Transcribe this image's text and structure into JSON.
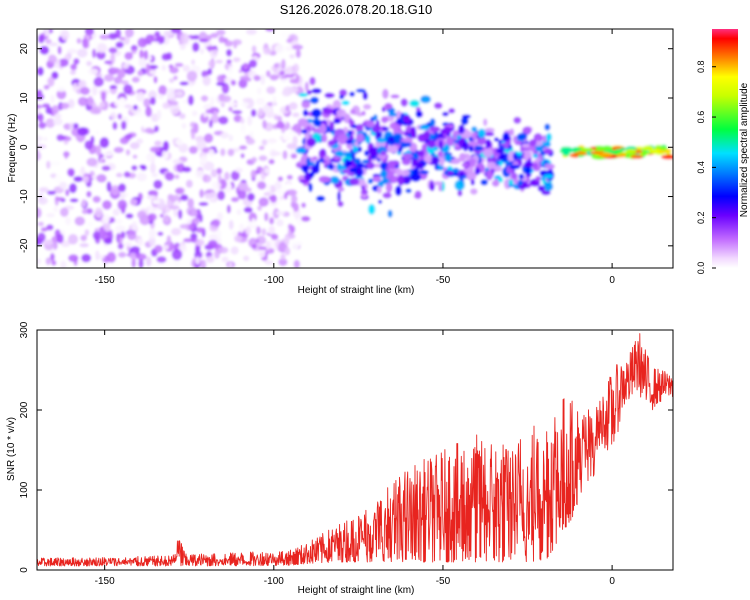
{
  "title": "S126.2026.078.20.18.G10",
  "chart_data": [
    {
      "type": "heatmap",
      "xlabel": "Height of straight line (km)",
      "ylabel": "Frequency (Hz)",
      "xlim": [
        -170,
        18
      ],
      "ylim": [
        -24.5,
        24
      ],
      "xticks": [
        -150,
        -100,
        -50,
        0
      ],
      "yticks": [
        -20,
        -10,
        0,
        10,
        20
      ],
      "colorbar": {
        "label": "Normalized spectral amplitude",
        "range": [
          0,
          0.95
        ],
        "ticks": [
          0.0,
          0.2,
          0.4,
          0.6,
          0.8
        ],
        "tick_labels": [
          "0.0",
          "0.2",
          "0.4",
          "0.6",
          "0.8"
        ],
        "colormap": "rainbow (magenta-blue-cyan-green-yellow-red)"
      },
      "regions": [
        {
          "x_range": [
            -170,
            -92
          ],
          "freq_range": [
            -24,
            24
          ],
          "amplitude_range": [
            0.0,
            0.18
          ],
          "description": "broadband noise"
        },
        {
          "x_range": [
            -92,
            -18
          ],
          "freq_center_start": 1,
          "freq_center_end": -3,
          "freq_halfwidth": 6,
          "amplitude_range": [
            0.08,
            0.5
          ]
        },
        {
          "x_range": [
            -14,
            18
          ],
          "freq_center": -1,
          "freq_halfwidth": 1,
          "amplitude_range": [
            0.5,
            0.95
          ],
          "description": "narrow strong signal"
        }
      ]
    },
    {
      "type": "line",
      "color": "#e8241f",
      "xlabel": "Height of straight line (km)",
      "ylabel": "SNR (10 * v/v)",
      "xlim": [
        -170,
        18
      ],
      "ylim": [
        0,
        300
      ],
      "xticks": [
        -150,
        -100,
        -50,
        0
      ],
      "yticks": [
        0,
        100,
        200,
        300
      ],
      "envelope": {
        "x": [
          -170,
          -150,
          -130,
          -128,
          -126,
          -110,
          -95,
          -90,
          -80,
          -70,
          -60,
          -50,
          -40,
          -30,
          -20,
          -15,
          -10,
          -5,
          -2,
          0,
          3,
          5,
          8,
          10,
          12,
          15,
          18
        ],
        "low": [
          5,
          5,
          5,
          5,
          5,
          5,
          6,
          8,
          10,
          10,
          10,
          10,
          10,
          10,
          10,
          40,
          80,
          120,
          110,
          80,
          160,
          170,
          180,
          150,
          170,
          190,
          200
        ],
        "high": [
          15,
          16,
          18,
          45,
          20,
          22,
          25,
          35,
          60,
          90,
          130,
          150,
          170,
          160,
          200,
          220,
          210,
          200,
          230,
          250,
          265,
          270,
          300,
          275,
          255,
          250,
          245
        ]
      }
    }
  ]
}
